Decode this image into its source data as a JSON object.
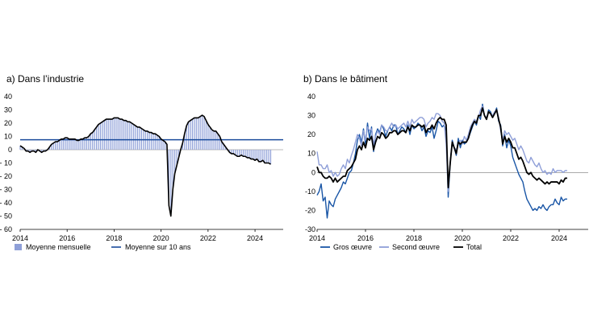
{
  "chart_data": [
    {
      "type": "bar",
      "title": "a)  Dans l’industrie",
      "ylim": [
        -60,
        40
      ],
      "yticks": [
        40,
        30,
        20,
        10,
        0,
        -10,
        -20,
        -30,
        -40,
        -50,
        -60
      ],
      "ytick_labels": [
        "40",
        "30",
        "20",
        "10",
        "0",
        "- 10",
        "- 20",
        "- 30",
        "- 40",
        "- 50",
        "- 60"
      ],
      "xlim": [
        2014,
        2025.2
      ],
      "xticks": [
        "2014",
        "2016",
        "2018",
        "2020",
        "2022",
        "2024"
      ],
      "legend_position": "bottom",
      "series": [
        {
          "name": "Moyenne mensuelle",
          "kind": "bar",
          "color": "#8fa0d8",
          "x_start": 2014.0,
          "x_step": 0.0833333,
          "values": [
            3,
            2,
            1,
            -1,
            -1,
            -2,
            -1,
            -1,
            -2,
            0,
            -1,
            -2,
            -1,
            -1,
            0,
            2,
            4,
            5,
            6,
            6,
            7,
            8,
            8,
            9,
            9,
            8,
            8,
            8,
            8,
            7,
            7,
            8,
            8,
            9,
            9,
            10,
            12,
            13,
            15,
            17,
            19,
            20,
            21,
            22,
            23,
            23,
            23,
            23,
            24,
            24,
            24,
            23,
            23,
            22,
            22,
            21,
            21,
            20,
            19,
            18,
            17,
            17,
            16,
            15,
            14,
            14,
            13,
            13,
            12,
            12,
            11,
            10,
            8,
            7,
            6,
            4,
            -42,
            -50,
            -30,
            -18,
            -12,
            -6,
            0,
            5,
            12,
            18,
            21,
            22,
            23,
            24,
            24,
            24,
            25,
            26,
            25,
            22,
            19,
            17,
            15,
            14,
            14,
            12,
            10,
            6,
            4,
            2,
            0,
            -2,
            -3,
            -3,
            -4,
            -5,
            -5,
            -4,
            -5,
            -5,
            -6,
            -6,
            -7,
            -7,
            -8,
            -7,
            -9,
            -9,
            -8,
            -10,
            -10,
            -10,
            -11
          ]
        },
        {
          "name": "Moyenne sur 10 ans",
          "kind": "hline",
          "color": "#1a4b9c",
          "value": 7.5
        }
      ],
      "line_color": "#000000"
    },
    {
      "type": "line",
      "title": "b)  Dans le bâtiment",
      "ylim": [
        -30,
        40
      ],
      "yticks": [
        40,
        30,
        20,
        10,
        0,
        -10,
        -20,
        -30
      ],
      "ytick_labels": [
        "40",
        "30",
        "20",
        "10",
        "0",
        "-10",
        "-20",
        "-30"
      ],
      "xlim": [
        2014,
        2025.2
      ],
      "xticks": [
        "2014",
        "2016",
        "2018",
        "2020",
        "2022",
        "2024"
      ],
      "legend_position": "bottom",
      "x_start": 2014.0,
      "x_step": 0.0833333,
      "series": [
        {
          "name": "Gros œuvre",
          "color": "#1a56a6",
          "values": [
            -12,
            -10,
            -6,
            -15,
            -13,
            -24,
            -15,
            -17,
            -18,
            -14,
            -12,
            -10,
            -8,
            -5,
            -6,
            -3,
            0,
            1,
            5,
            10,
            17,
            20,
            16,
            23,
            15,
            26,
            18,
            24,
            11,
            20,
            23,
            21,
            25,
            23,
            19,
            22,
            24,
            22,
            25,
            25,
            20,
            22,
            24,
            23,
            21,
            25,
            20,
            25,
            23,
            24,
            26,
            25,
            22,
            24,
            19,
            22,
            21,
            24,
            18,
            22,
            27,
            26,
            24,
            25,
            22,
            -13,
            5,
            17,
            13,
            9,
            18,
            13,
            17,
            15,
            16,
            18,
            21,
            24,
            27,
            25,
            30,
            28,
            36,
            30,
            28,
            33,
            32,
            29,
            31,
            34,
            27,
            25,
            14,
            20,
            13,
            17,
            14,
            8,
            5,
            2,
            -1,
            -3,
            -5,
            -10,
            -14,
            -16,
            -18,
            -20,
            -19,
            -20,
            -18,
            -19,
            -17,
            -19,
            -20,
            -18,
            -17,
            -17,
            -14,
            -16,
            -17,
            -13,
            -15,
            -14,
            -14
          ]
        },
        {
          "name": "Second œuvre",
          "color": "#8f9fd8",
          "values": [
            11,
            4,
            4,
            2,
            2,
            4,
            0,
            1,
            -2,
            0,
            -2,
            -1,
            2,
            4,
            2,
            7,
            5,
            9,
            12,
            16,
            20,
            18,
            14,
            22,
            17,
            24,
            22,
            23,
            15,
            19,
            22,
            20,
            25,
            24,
            22,
            22,
            24,
            26,
            24,
            25,
            23,
            24,
            25,
            26,
            24,
            27,
            24,
            28,
            26,
            27,
            28,
            29,
            29,
            28,
            24,
            26,
            27,
            29,
            28,
            31,
            31,
            30,
            27,
            26,
            15,
            -10,
            6,
            15,
            13,
            12,
            15,
            17,
            15,
            19,
            17,
            20,
            24,
            26,
            28,
            27,
            29,
            33,
            35,
            30,
            29,
            32,
            31,
            30,
            32,
            33,
            29,
            22,
            17,
            22,
            20,
            21,
            19,
            17,
            18,
            15,
            12,
            14,
            12,
            9,
            6,
            5,
            8,
            6,
            4,
            3,
            5,
            2,
            0,
            1,
            -1,
            0,
            -1,
            2,
            0,
            1,
            1,
            1,
            0,
            1,
            1
          ]
        },
        {
          "name": "Total",
          "color": "#000000",
          "values": [
            3,
            0,
            0,
            -2,
            -3,
            -3,
            -2,
            -3,
            -5,
            -3,
            -5,
            -4,
            -3,
            -2,
            -2,
            1,
            2,
            3,
            5,
            7,
            12,
            14,
            12,
            16,
            13,
            18,
            17,
            19,
            12,
            16,
            19,
            18,
            21,
            20,
            18,
            19,
            21,
            21,
            22,
            22,
            20,
            21,
            22,
            22,
            21,
            24,
            22,
            25,
            24,
            24,
            25,
            25,
            24,
            25,
            21,
            23,
            23,
            25,
            23,
            26,
            28,
            29,
            28,
            28,
            25,
            -8,
            5,
            16,
            13,
            10,
            16,
            15,
            16,
            16,
            16,
            18,
            22,
            25,
            27,
            26,
            30,
            30,
            34,
            30,
            28,
            32,
            31,
            29,
            31,
            33,
            28,
            24,
            15,
            19,
            16,
            18,
            16,
            13,
            13,
            10,
            7,
            8,
            6,
            3,
            0,
            -1,
            0,
            -2,
            -3,
            -4,
            -3,
            -4,
            -5,
            -6,
            -5,
            -6,
            -5,
            -5,
            -5,
            -5,
            -6,
            -4,
            -5,
            -3,
            -3
          ]
        }
      ]
    }
  ]
}
